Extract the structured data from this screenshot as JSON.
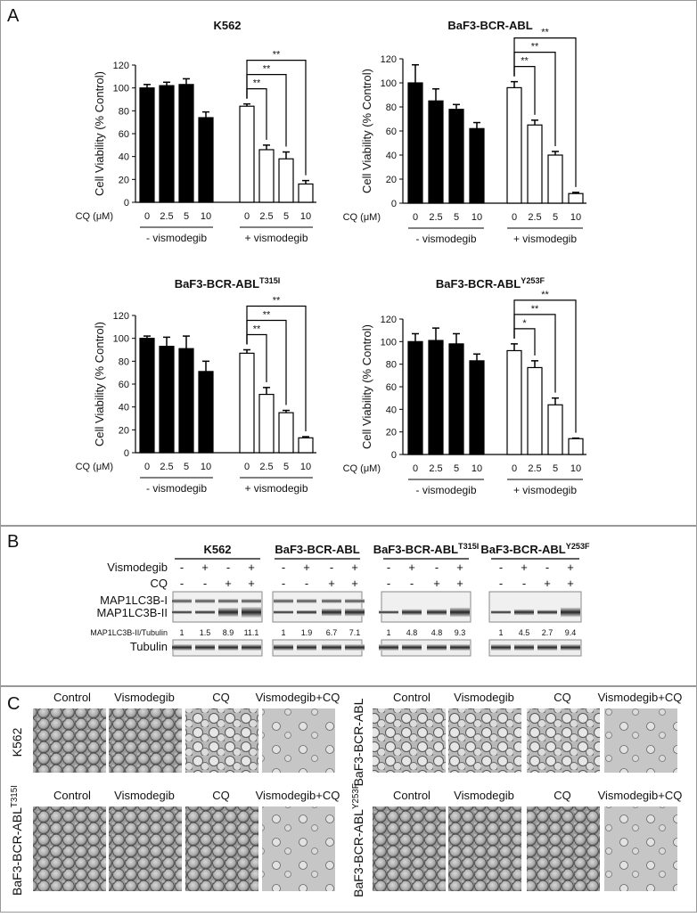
{
  "panel_labels": [
    "A",
    "B",
    "C"
  ],
  "chart_data": [
    {
      "type": "bar",
      "title": "K562",
      "y_label": "Cell Viability (% Control)",
      "x_label": "CQ (μM)",
      "categories": [
        "0",
        "2.5",
        "5",
        "10",
        "0",
        "2.5",
        "5",
        "10"
      ],
      "groups": [
        "- vismodegib",
        "+ vismodegib"
      ],
      "values": [
        100,
        102,
        103,
        74,
        84,
        46,
        38,
        16
      ],
      "errors": [
        3,
        3,
        5,
        5,
        2,
        4,
        6,
        3
      ],
      "colors": [
        "#000000",
        "#000000",
        "#000000",
        "#000000",
        "#ffffff",
        "#ffffff",
        "#ffffff",
        "#ffffff"
      ],
      "significance": [
        "**",
        "**",
        "**"
      ],
      "ylim": [
        0,
        120
      ],
      "yticks": [
        0,
        20,
        40,
        60,
        80,
        100,
        120
      ]
    },
    {
      "type": "bar",
      "title": "BaF3-BCR-ABL",
      "y_label": "Cell Viability (% Control)",
      "x_label": "CQ (μM)",
      "categories": [
        "0",
        "2.5",
        "5",
        "10",
        "0",
        "2.5",
        "5",
        "10"
      ],
      "groups": [
        "- vismodegib",
        "+ vismodegib"
      ],
      "values": [
        100,
        85,
        78,
        62,
        96,
        65,
        40,
        8
      ],
      "errors": [
        15,
        10,
        4,
        5,
        5,
        4,
        3,
        1
      ],
      "colors": [
        "#000000",
        "#000000",
        "#000000",
        "#000000",
        "#ffffff",
        "#ffffff",
        "#ffffff",
        "#ffffff"
      ],
      "significance": [
        "**",
        "**",
        "**"
      ],
      "ylim": [
        0,
        120
      ],
      "yticks": [
        0,
        20,
        40,
        60,
        80,
        100,
        120
      ]
    },
    {
      "type": "bar",
      "title": "BaF3-BCR-ABL",
      "title_sup": "T315I",
      "y_label": "Cell Viability (% Control)",
      "x_label": "CQ (μM)",
      "categories": [
        "0",
        "2.5",
        "5",
        "10",
        "0",
        "2.5",
        "5",
        "10"
      ],
      "groups": [
        "- vismodegib",
        "+ vismodegib"
      ],
      "values": [
        100,
        93,
        91,
        71,
        87,
        51,
        35,
        13
      ],
      "errors": [
        2,
        8,
        11,
        9,
        3,
        6,
        2,
        1
      ],
      "colors": [
        "#000000",
        "#000000",
        "#000000",
        "#000000",
        "#ffffff",
        "#ffffff",
        "#ffffff",
        "#ffffff"
      ],
      "significance": [
        "**",
        "**",
        "**"
      ],
      "ylim": [
        0,
        120
      ],
      "yticks": [
        0,
        20,
        40,
        60,
        80,
        100,
        120
      ]
    },
    {
      "type": "bar",
      "title": "BaF3-BCR-ABL",
      "title_sup": "Y253F",
      "y_label": "Cell Viability (% Control)",
      "x_label": "CQ (μM)",
      "categories": [
        "0",
        "2.5",
        "5",
        "10",
        "0",
        "2.5",
        "5",
        "10"
      ],
      "groups": [
        "- vismodegib",
        "+ vismodegib"
      ],
      "values": [
        100,
        101,
        98,
        83,
        92,
        77,
        44,
        14
      ],
      "errors": [
        7,
        11,
        9,
        6,
        6,
        6,
        6,
        0.5
      ],
      "colors": [
        "#000000",
        "#000000",
        "#000000",
        "#000000",
        "#ffffff",
        "#ffffff",
        "#ffffff",
        "#ffffff"
      ],
      "significance": [
        "*",
        "**",
        "**"
      ],
      "ylim": [
        0,
        120
      ],
      "yticks": [
        0,
        20,
        40,
        60,
        80,
        100,
        120
      ]
    }
  ],
  "blot": {
    "row_labels": {
      "vismodegib": "Vismodegib",
      "cq": "CQ",
      "lc3_1": "MAP1LC3B-I",
      "lc3_2": "MAP1LC3B-II",
      "ratio": "MAP1LC3B-II/Tubulin",
      "tubulin": "Tubulin"
    },
    "groups": [
      {
        "title": "K562",
        "vismodegib": [
          "-",
          "+",
          "-",
          "+"
        ],
        "cq": [
          "-",
          "-",
          "+",
          "+"
        ],
        "ratio": [
          1,
          1.5,
          8.9,
          11.1
        ]
      },
      {
        "title": "BaF3-BCR-ABL",
        "vismodegib": [
          "-",
          "+",
          "-",
          "+"
        ],
        "cq": [
          "-",
          "-",
          "+",
          "+"
        ],
        "ratio": [
          1,
          1.9,
          6.7,
          7.1
        ]
      },
      {
        "title": "BaF3-BCR-ABL",
        "sup": "T315I",
        "vismodegib": [
          "-",
          "+",
          "-",
          "+"
        ],
        "cq": [
          "-",
          "-",
          "+",
          "+"
        ],
        "ratio": [
          1,
          4.8,
          4.8,
          9.3
        ]
      },
      {
        "title": "BaF3-BCR-ABL",
        "sup": "Y253F",
        "vismodegib": [
          "-",
          "+",
          "-",
          "+"
        ],
        "cq": [
          "-",
          "-",
          "+",
          "+"
        ],
        "ratio": [
          1,
          4.5,
          2.7,
          9.4
        ]
      }
    ]
  },
  "micrographs": {
    "columns": [
      "Control",
      "Vismodegib",
      "CQ",
      "Vismodegib+CQ"
    ],
    "rows": [
      {
        "label": "K562"
      },
      {
        "label": "BaF3-BCR-ABL"
      },
      {
        "label": "BaF3-BCR-ABL",
        "sup": "T315I"
      },
      {
        "label": "BaF3-BCR-ABL",
        "sup": "Y253F"
      }
    ]
  }
}
